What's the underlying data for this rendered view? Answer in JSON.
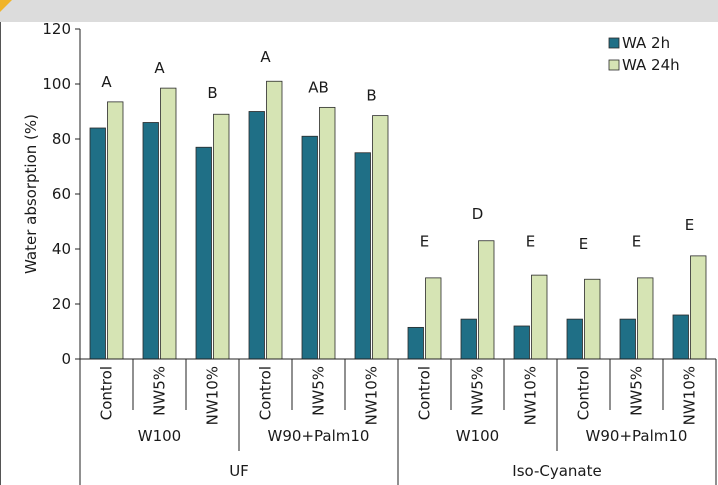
{
  "chart_data": {
    "type": "bar",
    "ylabel": "Water absorption (%)",
    "ylim": [
      0,
      120
    ],
    "yticks": [
      0,
      20,
      40,
      60,
      80,
      100,
      120
    ],
    "legend_position": "top-right",
    "categories": [
      "Control",
      "NW5%",
      "NW10%",
      "Control",
      "NW5%",
      "NW10%",
      "Control",
      "NW5%",
      "NW10%",
      "Control",
      "NW5%",
      "NW10%"
    ],
    "group_level_2": [
      {
        "label": "W100",
        "span": 3
      },
      {
        "label": "W90+Palm10",
        "span": 3
      },
      {
        "label": "W100",
        "span": 3
      },
      {
        "label": "W90+Palm10",
        "span": 3
      }
    ],
    "group_level_1": [
      {
        "label": "UF",
        "span": 6
      },
      {
        "label": "Iso-Cyanate",
        "span": 6
      }
    ],
    "series": [
      {
        "name": "WA 2h",
        "color": "#1f6f86",
        "values": [
          84,
          86,
          77,
          90,
          81,
          75,
          11.5,
          14.5,
          12,
          14.5,
          14.5,
          16
        ]
      },
      {
        "name": "WA 24h",
        "color": "#d6e4b4",
        "values": [
          93.5,
          98.5,
          89,
          101,
          91.5,
          88.5,
          29.5,
          43,
          30.5,
          29,
          29.5,
          37.5
        ]
      }
    ],
    "annotations": [
      "A",
      "A",
      "B",
      "A",
      "AB",
      "B",
      "E",
      "D",
      "E",
      "E",
      "E",
      "E"
    ],
    "annotation_values": [
      99,
      104,
      95,
      108,
      97,
      94,
      41,
      51,
      41,
      40,
      41,
      47
    ]
  }
}
